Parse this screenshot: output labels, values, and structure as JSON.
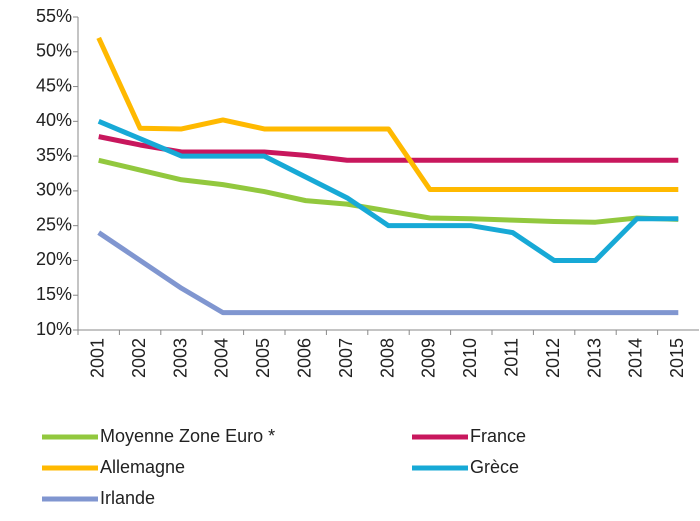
{
  "chart_data": {
    "type": "line",
    "categories": [
      "2001",
      "2002",
      "2003",
      "2004",
      "2005",
      "2006",
      "2007",
      "2008",
      "2009",
      "2010",
      "2011",
      "2012",
      "2013",
      "2014",
      "2015"
    ],
    "series": [
      {
        "name": "Moyenne Zone Euro *",
        "color": "#92c83e",
        "values": [
          34.4,
          33,
          31.6,
          30.9,
          29.9,
          28.6,
          28.1,
          27.1,
          26.1,
          26,
          25.8,
          25.6,
          25.5,
          26.1,
          25.9
        ]
      },
      {
        "name": "France",
        "color": "#c8175d",
        "values": [
          37.8,
          36.6,
          35.6,
          35.6,
          35.6,
          35.1,
          34.4,
          34.4,
          34.4,
          34.4,
          34.4,
          34.4,
          34.4,
          34.4,
          34.4
        ]
      },
      {
        "name": "Allemagne",
        "color": "#ffb900",
        "values": [
          52,
          39,
          38.9,
          40.2,
          38.9,
          38.9,
          38.9,
          38.9,
          30.2,
          30.2,
          30.2,
          30.2,
          30.2,
          30.2,
          30.2
        ]
      },
      {
        "name": "Grèce",
        "color": "#17a9d6",
        "values": [
          40,
          37.5,
          35,
          35,
          35,
          32,
          29,
          25,
          25,
          25,
          24,
          20,
          20,
          26,
          26
        ]
      },
      {
        "name": "Irlande",
        "color": "#8096d0",
        "values": [
          24,
          20,
          16,
          12.5,
          12.5,
          12.5,
          12.5,
          12.5,
          12.5,
          12.5,
          12.5,
          12.5,
          12.5,
          12.5,
          12.5
        ]
      }
    ],
    "ylim": [
      10,
      55
    ],
    "yticks": [
      {
        "value": 10,
        "label": "10%"
      },
      {
        "value": 15,
        "label": "15%"
      },
      {
        "value": 20,
        "label": "20%"
      },
      {
        "value": 25,
        "label": "25%"
      },
      {
        "value": 30,
        "label": "30%"
      },
      {
        "value": 35,
        "label": "35%"
      },
      {
        "value": 40,
        "label": "40%"
      },
      {
        "value": 45,
        "label": "45%"
      },
      {
        "value": 50,
        "label": "50%"
      },
      {
        "value": 55,
        "label": "55%"
      }
    ],
    "grid": false,
    "legend": "bottom"
  }
}
